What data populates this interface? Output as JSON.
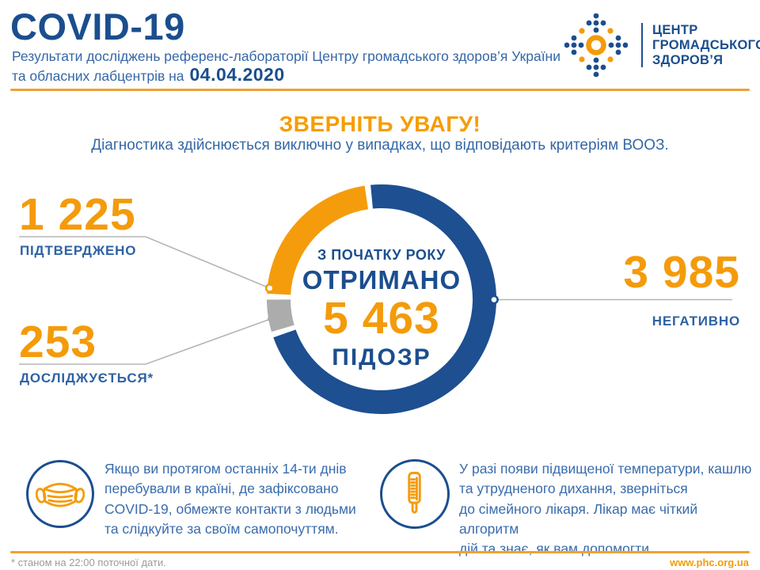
{
  "header": {
    "title": "COVID-19",
    "subtitle_line1": "Результати досліджень референс-лабораторії Центру громадського здоров’я України",
    "subtitle_line2_prefix": "та обласних лабцентрів на",
    "date": "04.04.2020",
    "logo": {
      "line1": "ЦЕНТР",
      "line2": "ГРОМАДСЬКОГО",
      "line3": "ЗДОРОВ’Я"
    }
  },
  "attention": {
    "title": "ЗВЕРНІТЬ УВАГУ!",
    "subtitle": "Діагностика здійснюється виключно у випадках, що відповідають критеріям ВООЗ."
  },
  "stats": {
    "confirmed": {
      "value": "1 225",
      "label": "ПІДТВЕРДЖЕНО"
    },
    "investigating": {
      "value": "253",
      "label": "ДОСЛІДЖУЄТЬСЯ*"
    },
    "negative": {
      "value": "3 985",
      "label": "НЕГАТИВНО"
    }
  },
  "donut_center": {
    "line1": "З ПОЧАТКУ РОКУ",
    "line2": "ОТРИМАНО",
    "value": "5 463",
    "line3": "ПІДОЗР"
  },
  "chart_data": {
    "type": "pie",
    "title": "З початку року отримано 5 463 підозр",
    "total": 5463,
    "donut": true,
    "legend_position": "callout-labels",
    "segments": [
      {
        "label": "ПІДТВЕРДЖЕНО",
        "value": 1225,
        "color": "#F49C0C"
      },
      {
        "label": "ДОСЛІДЖУЄТЬСЯ*",
        "value": 253,
        "color": "#ACACAC"
      },
      {
        "label": "НЕГАТИВНО",
        "value": 3985,
        "color": "#1D4F91"
      }
    ]
  },
  "info_boxes": [
    {
      "icon": "face-mask-icon",
      "lines": [
        "Якщо ви протягом останніх 14-ти днів",
        "перебували в країні, де зафіксовано",
        "COVID-19, обмежте контакти з людьми",
        "та слідкуйте за своїм самопочуттям."
      ]
    },
    {
      "icon": "thermometer-icon",
      "lines": [
        "У разі появи підвищеної температури, кашлю",
        "та утрудненого дихання, зверніться",
        "до сімейного лікаря. Лікар має чіткий алгоритм",
        "дій та знає, як вам допомогти."
      ]
    }
  ],
  "footer": {
    "note": "* станом на 22:00 поточної дати.",
    "site": "www.phc.org.ua"
  },
  "colors": {
    "primary_blue": "#1B4E8E",
    "text_blue": "#3567A6",
    "accent_orange": "#F49B0B",
    "rule_orange": "#EFA232",
    "grey": "#ACACAC",
    "leader_line_grey": "#B5B5B5"
  }
}
